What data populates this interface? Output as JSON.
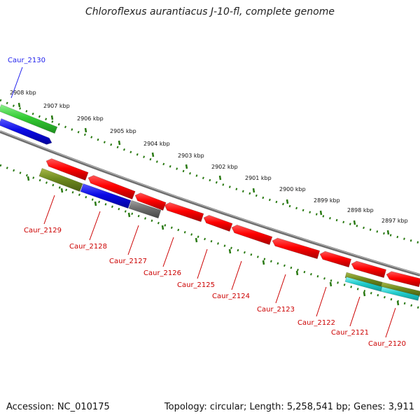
{
  "title": "Chloroflexus aurantiacus J-10-fl, complete genome",
  "footer": {
    "accession": "Accession: NC_010175",
    "summary": "Topology: circular; Length: 5,258,541 bp; Genes: 3,911"
  },
  "colors": {
    "tick_color": "#2a7a12",
    "label_plus_strand": "#0000aa",
    "label_minus_strand": "#cc0000",
    "backbone": "#888888"
  },
  "scale_labels": [
    "2908 kbp",
    "2907 kbp",
    "2906 kbp",
    "2905 kbp",
    "2904 kbp",
    "2903 kbp",
    "2902 kbp",
    "2901 kbp",
    "2900 kbp",
    "2899 kbp",
    "2898 kbp",
    "2897 kbp"
  ],
  "genes": [
    {
      "name": "Caur_2130",
      "color": "#2222ee",
      "strand": "+"
    },
    {
      "name": "Caur_2129",
      "color": "#cc0000",
      "strand": "-"
    },
    {
      "name": "Caur_2128",
      "color": "#cc0000",
      "strand": "-"
    },
    {
      "name": "Caur_2127",
      "color": "#cc0000",
      "strand": "-"
    },
    {
      "name": "Caur_2126",
      "color": "#cc0000",
      "strand": "-"
    },
    {
      "name": "Caur_2125",
      "color": "#cc0000",
      "strand": "-"
    },
    {
      "name": "Caur_2124",
      "color": "#cc0000",
      "strand": "-"
    },
    {
      "name": "Caur_2123",
      "color": "#cc0000",
      "strand": "-"
    },
    {
      "name": "Caur_2122",
      "color": "#cc0000",
      "strand": "-"
    },
    {
      "name": "Caur_2121",
      "color": "#cc0000",
      "strand": "-"
    },
    {
      "name": "Caur_2120",
      "color": "#cc0000",
      "strand": "-"
    }
  ]
}
